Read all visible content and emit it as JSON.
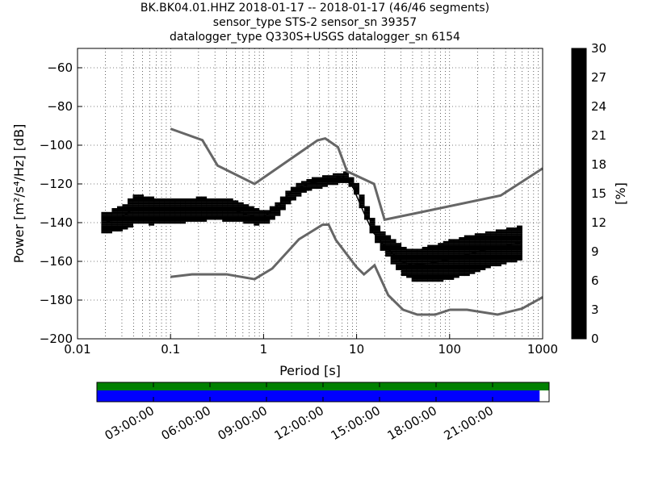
{
  "title": {
    "line1": "BK.BK04.01.HHZ   2018-01-17 -- 2018-01-17  (46/46 segments)",
    "line2": "sensor_type STS-2 sensor_sn 39357",
    "line3": "datalogger_type Q330S+USGS datalogger_sn 6154"
  },
  "chart_data": {
    "type": "heatmap",
    "xlabel": "Period [s]",
    "ylabel": "Power [m²/s⁴/Hz] [dB]",
    "xscale": "log",
    "xlim": [
      0.01,
      1000
    ],
    "ylim": [
      -200,
      -50
    ],
    "xticks": [
      {
        "v": 0.01,
        "label": "0.01"
      },
      {
        "v": 0.1,
        "label": "0.1"
      },
      {
        "v": 1,
        "label": "1"
      },
      {
        "v": 10,
        "label": "10"
      },
      {
        "v": 100,
        "label": "100"
      },
      {
        "v": 1000,
        "label": "1000"
      }
    ],
    "yticks": [
      {
        "v": -60,
        "label": "−60"
      },
      {
        "v": -80,
        "label": "−80"
      },
      {
        "v": -100,
        "label": "−100"
      },
      {
        "v": -120,
        "label": "−120"
      },
      {
        "v": -140,
        "label": "−140"
      },
      {
        "v": -160,
        "label": "−160"
      },
      {
        "v": -180,
        "label": "−180"
      },
      {
        "v": -200,
        "label": "−200"
      }
    ],
    "grid": true,
    "colorbar": {
      "label": "[%]",
      "min": 0,
      "max": 30,
      "ticks": [
        "0",
        "3",
        "6",
        "9",
        "12",
        "15",
        "18",
        "21",
        "24",
        "27",
        "30"
      ]
    },
    "nhnm": [
      [
        0.1,
        -91.5
      ],
      [
        0.22,
        -97.4
      ],
      [
        0.32,
        -110.5
      ],
      [
        0.8,
        -120
      ],
      [
        3.8,
        -97.5
      ],
      [
        4.6,
        -96.5
      ],
      [
        6.3,
        -101
      ],
      [
        7.9,
        -113.5
      ],
      [
        15.4,
        -120
      ],
      [
        20,
        -138.5
      ],
      [
        354,
        -126
      ],
      [
        1000,
        -112
      ]
    ],
    "nlnm": [
      [
        0.1,
        -168
      ],
      [
        0.17,
        -166.7
      ],
      [
        0.4,
        -166.7
      ],
      [
        0.8,
        -169.2
      ],
      [
        1.24,
        -163.7
      ],
      [
        2.4,
        -148.6
      ],
      [
        4.3,
        -141.1
      ],
      [
        5,
        -141
      ],
      [
        6,
        -149
      ],
      [
        10,
        -163
      ],
      [
        12,
        -166.7
      ],
      [
        15.6,
        -162
      ],
      [
        21.9,
        -177.5
      ],
      [
        31.6,
        -185
      ],
      [
        45,
        -187.5
      ],
      [
        70,
        -187.5
      ],
      [
        101,
        -185
      ],
      [
        154,
        -185
      ],
      [
        328,
        -187.5
      ],
      [
        600,
        -184.4
      ],
      [
        1000,
        -178.5
      ]
    ],
    "mean": [
      [
        0.02,
        -140
      ],
      [
        0.03,
        -137
      ],
      [
        0.04,
        -133
      ],
      [
        0.06,
        -134
      ],
      [
        0.1,
        -134
      ],
      [
        0.2,
        -133
      ],
      [
        0.3,
        -133
      ],
      [
        0.5,
        -134
      ],
      [
        0.8,
        -137
      ],
      [
        1,
        -137
      ],
      [
        1.3,
        -133
      ],
      [
        2,
        -124
      ],
      [
        3,
        -120
      ],
      [
        5,
        -118
      ],
      [
        7,
        -116
      ],
      [
        9,
        -121
      ],
      [
        12,
        -135
      ],
      [
        15,
        -145
      ],
      [
        20,
        -152
      ],
      [
        30,
        -160
      ],
      [
        40,
        -162
      ],
      [
        60,
        -161
      ],
      [
        100,
        -159
      ],
      [
        200,
        -155
      ],
      [
        400,
        -152
      ],
      [
        600,
        -150
      ]
    ],
    "spread": [
      [
        0.02,
        5
      ],
      [
        0.04,
        7
      ],
      [
        0.1,
        6
      ],
      [
        0.5,
        5
      ],
      [
        1,
        3
      ],
      [
        2,
        3
      ],
      [
        7,
        2
      ],
      [
        12,
        3
      ],
      [
        20,
        5
      ],
      [
        40,
        8
      ],
      [
        100,
        10
      ],
      [
        600,
        8
      ]
    ],
    "timeline": {
      "ticks": [
        "03:00:00",
        "06:00:00",
        "09:00:00",
        "12:00:00",
        "15:00:00",
        "18:00:00",
        "21:00:00"
      ],
      "coverage_fraction": 0.979
    }
  }
}
